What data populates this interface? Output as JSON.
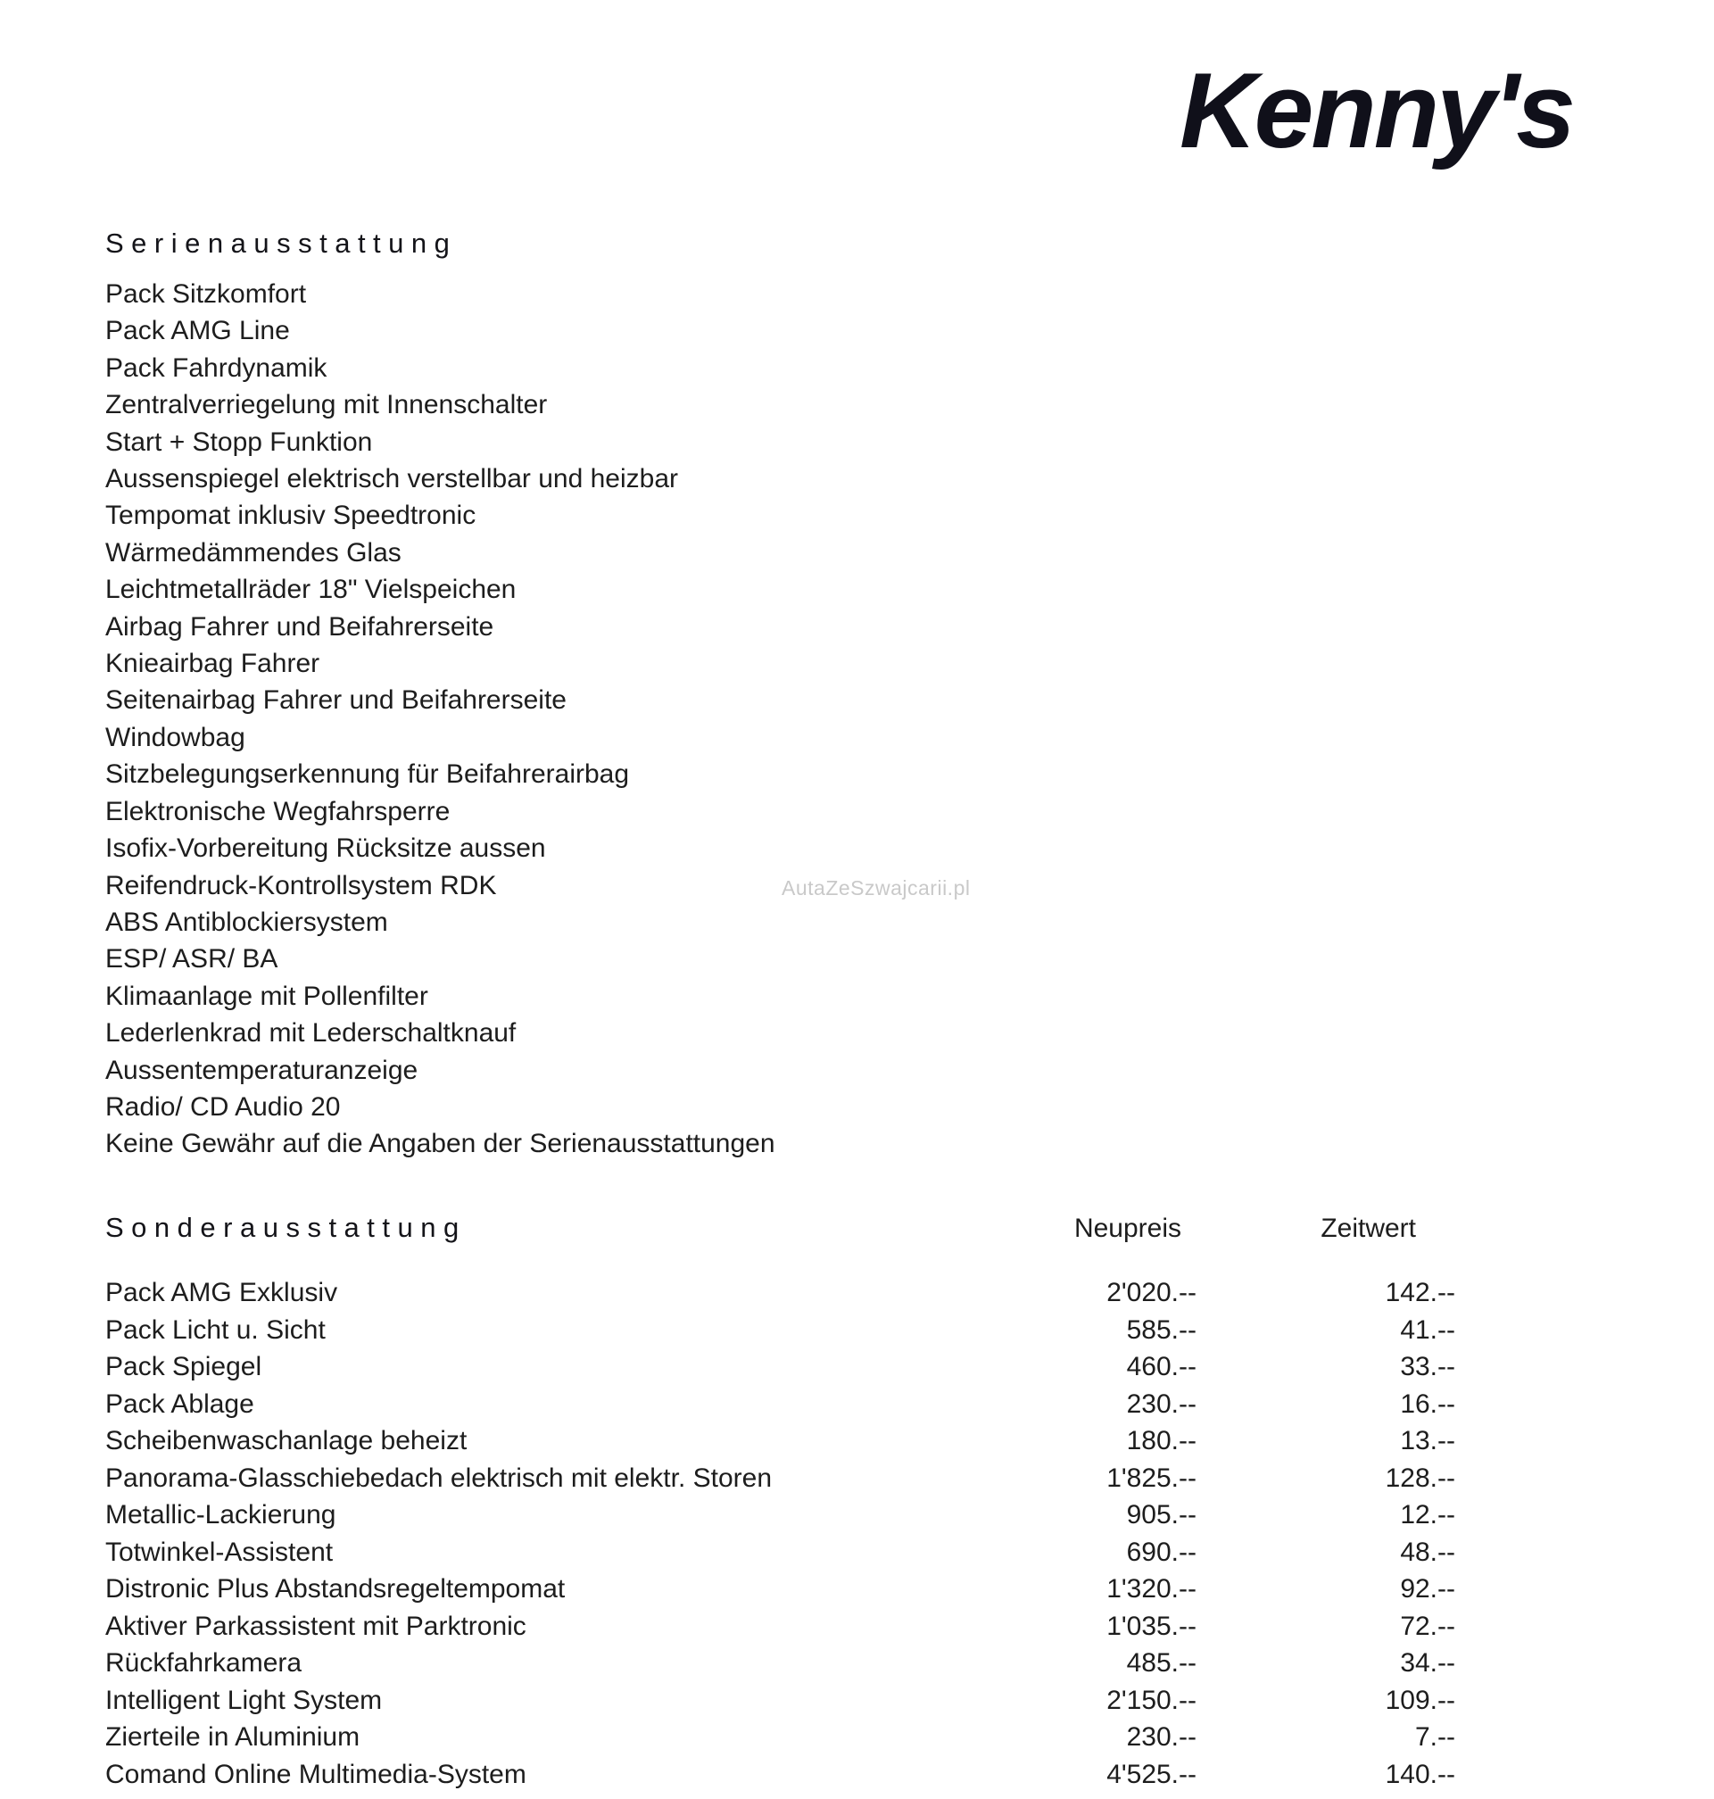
{
  "logo": {
    "text": "Kenny's"
  },
  "watermark": {
    "text": "AutaZeSzwajcarii.pl"
  },
  "colors": {
    "text": "#1d1d1d",
    "logo": "#10101a",
    "watermark": "#c9c9c9",
    "background": "#ffffff"
  },
  "serienausstattung": {
    "heading": "Serienausstattung",
    "items": [
      "Pack Sitzkomfort",
      "Pack AMG Line",
      "Pack Fahrdynamik",
      "Zentralverriegelung mit Innenschalter",
      "Start + Stopp Funktion",
      "Aussenspiegel elektrisch verstellbar und heizbar",
      "Tempomat inklusiv Speedtronic",
      "Wärmedämmendes Glas",
      "Leichtmetallräder 18\" Vielspeichen",
      "Airbag Fahrer und Beifahrerseite",
      "Knieairbag Fahrer",
      "Seitenairbag Fahrer und Beifahrerseite",
      "Windowbag",
      "Sitzbelegungserkennung für Beifahrerairbag",
      "Elektronische Wegfahrsperre",
      "Isofix-Vorbereitung Rücksitze aussen",
      "Reifendruck-Kontrollsystem RDK",
      "ABS Antiblockiersystem",
      "ESP/ ASR/ BA",
      "Klimaanlage mit Pollenfilter",
      "Lederlenkrad mit Lederschaltknauf",
      "Aussentemperaturanzeige",
      "Radio/ CD Audio 20",
      "Keine Gewähr auf die Angaben der Serienausstattungen"
    ]
  },
  "sonderausstattung": {
    "heading": "Sonderausstattung",
    "columns": {
      "neupreis": "Neupreis",
      "zeitwert": "Zeitwert"
    },
    "rows": [
      {
        "name": "Pack AMG Exklusiv",
        "neupreis": "2'020.--",
        "zeitwert": "142.--"
      },
      {
        "name": "Pack Licht u. Sicht",
        "neupreis": "585.--",
        "zeitwert": "41.--"
      },
      {
        "name": "Pack Spiegel",
        "neupreis": "460.--",
        "zeitwert": "33.--"
      },
      {
        "name": "Pack Ablage",
        "neupreis": "230.--",
        "zeitwert": "16.--"
      },
      {
        "name": "Scheibenwaschanlage beheizt",
        "neupreis": "180.--",
        "zeitwert": "13.--"
      },
      {
        "name": "Panorama-Glasschiebedach elektrisch mit elektr. Storen",
        "neupreis": "1'825.--",
        "zeitwert": "128.--"
      },
      {
        "name": "Metallic-Lackierung",
        "neupreis": "905.--",
        "zeitwert": "12.--"
      },
      {
        "name": "Totwinkel-Assistent",
        "neupreis": "690.--",
        "zeitwert": "48.--"
      },
      {
        "name": "Distronic Plus Abstandsregeltempomat",
        "neupreis": "1'320.--",
        "zeitwert": "92.--"
      },
      {
        "name": "Aktiver Parkassistent mit Parktronic",
        "neupreis": "1'035.--",
        "zeitwert": "72.--"
      },
      {
        "name": "Rückfahrkamera",
        "neupreis": "485.--",
        "zeitwert": "34.--"
      },
      {
        "name": "Intelligent Light System",
        "neupreis": "2'150.--",
        "zeitwert": "109.--"
      },
      {
        "name": "Zierteile in Aluminium",
        "neupreis": "230.--",
        "zeitwert": "7.--"
      },
      {
        "name": "Comand Online Multimedia-System",
        "neupreis": "4'525.--",
        "zeitwert": "140.--"
      }
    ]
  }
}
